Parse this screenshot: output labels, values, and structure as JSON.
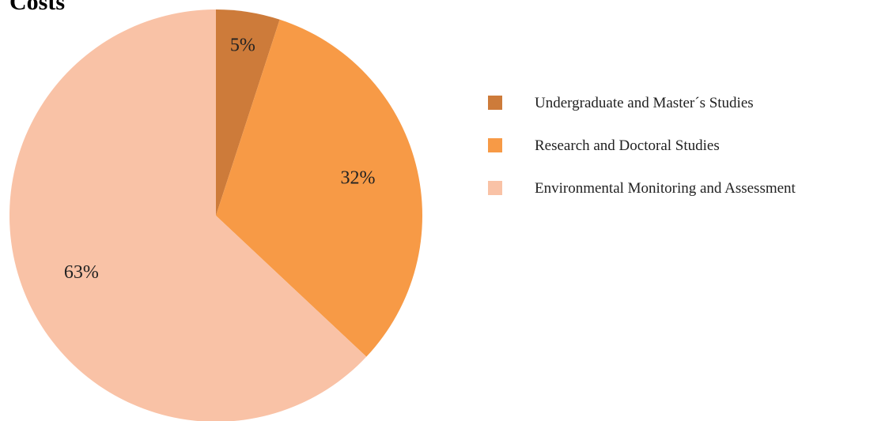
{
  "chart_data": {
    "type": "pie",
    "title": "Costs",
    "categories": [
      "Undergraduate and Master´s Studies",
      "Research and Doctoral Studies",
      "Environmental Monitoring and Assessment"
    ],
    "values": [
      5,
      32,
      63
    ],
    "value_labels": [
      "5%",
      "32%",
      "63%"
    ],
    "colors": [
      "#cd7b3a",
      "#f79a46",
      "#f9c2a6"
    ]
  }
}
